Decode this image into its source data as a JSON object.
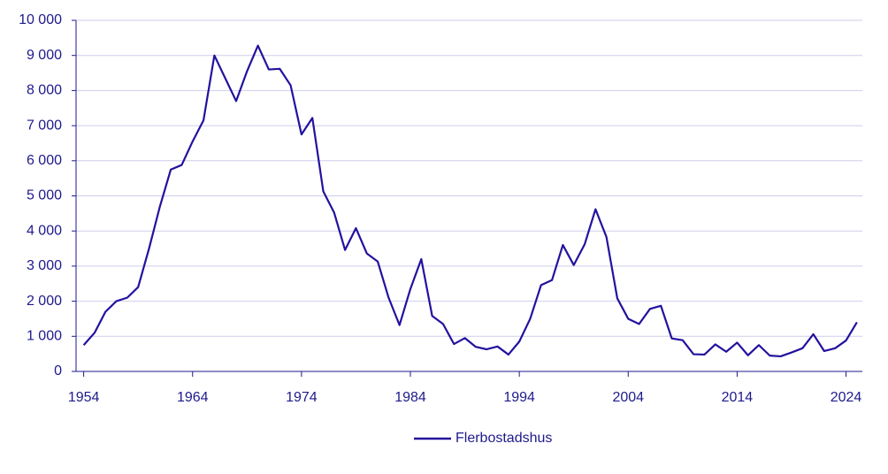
{
  "chart_data": {
    "type": "line",
    "x": [
      1954,
      1955,
      1956,
      1957,
      1958,
      1959,
      1960,
      1961,
      1962,
      1963,
      1964,
      1965,
      1966,
      1967,
      1968,
      1969,
      1970,
      1971,
      1972,
      1973,
      1974,
      1975,
      1976,
      1977,
      1978,
      1979,
      1980,
      1981,
      1982,
      1983,
      1984,
      1985,
      1986,
      1987,
      1988,
      1989,
      1990,
      1991,
      1992,
      1993,
      1994,
      1995,
      1996,
      1997,
      1998,
      1999,
      2000,
      2001,
      2002,
      2003,
      2004,
      2005,
      2006,
      2007,
      2008,
      2009,
      2010,
      2011,
      2012,
      2013,
      2014,
      2015,
      2016,
      2017,
      2018,
      2019,
      2020,
      2021,
      2022,
      2023,
      2024,
      2025
    ],
    "series": [
      {
        "name": "Flerbostadshus",
        "color": "#22129e",
        "values": [
          750,
          1100,
          1700,
          2000,
          2100,
          2400,
          3500,
          4700,
          5750,
          5880,
          6550,
          7150,
          9000,
          8350,
          7700,
          8550,
          9280,
          8600,
          8620,
          8150,
          6750,
          7220,
          5130,
          4520,
          3460,
          4080,
          3360,
          3130,
          2100,
          1320,
          2350,
          3200,
          1580,
          1350,
          780,
          950,
          700,
          630,
          710,
          480,
          850,
          1500,
          2460,
          2600,
          3600,
          3030,
          3620,
          4620,
          3830,
          2080,
          1500,
          1350,
          1780,
          1870,
          940,
          890,
          490,
          480,
          770,
          560,
          820,
          460,
          750,
          450,
          430,
          540,
          660,
          1060,
          580,
          660,
          880,
          1400
        ]
      }
    ],
    "xlim": [
      1953.3,
      2025.5
    ],
    "xticks": [
      1954,
      1964,
      1974,
      1984,
      1994,
      2004,
      2014,
      2024
    ],
    "ylim": [
      0,
      10000
    ],
    "yticks": [
      0,
      {
        "value": 1000,
        "label": "1 000"
      },
      {
        "value": 2000,
        "label": "2 000"
      },
      {
        "value": 3000,
        "label": "3 000"
      },
      {
        "value": 4000,
        "label": "4 000"
      },
      {
        "value": 5000,
        "label": "5 000"
      },
      {
        "value": 6000,
        "label": "6 000"
      },
      {
        "value": 7000,
        "label": "7 000"
      },
      {
        "value": 8000,
        "label": "8 000"
      },
      {
        "value": 9000,
        "label": "9 000"
      },
      {
        "value": 10000,
        "label": "10 000"
      }
    ],
    "grid": true
  }
}
